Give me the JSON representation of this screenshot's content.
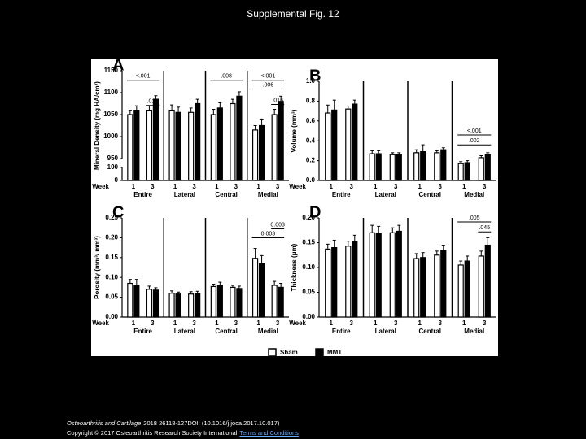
{
  "title": "Supplemental Fig. 12",
  "chart_data": [
    {
      "type": "bar",
      "panel": "A",
      "ylabel": "Mineral Density (mg HA/cm³)",
      "x_label": "Week",
      "groups": [
        "Entire",
        "Lateral",
        "Central",
        "Medial"
      ],
      "weeks": [
        "1",
        "3"
      ],
      "ylim": [
        0,
        1150
      ],
      "y_segments": [
        [
          0,
          100
        ],
        [
          950,
          1150
        ]
      ],
      "yticks": [
        0,
        100,
        950,
        1000,
        1050,
        1100,
        1150
      ],
      "series": [
        {
          "name": "Sham",
          "color": "#ffffff",
          "values": [
            1050,
            1060,
            1060,
            1055,
            1050,
            1075,
            1015,
            1050
          ],
          "errors": [
            10,
            10,
            12,
            10,
            12,
            10,
            10,
            12
          ]
        },
        {
          "name": "MMT",
          "color": "#000000",
          "values": [
            1060,
            1085,
            1055,
            1075,
            1065,
            1092,
            1025,
            1080
          ],
          "errors": [
            10,
            8,
            12,
            10,
            12,
            10,
            15,
            12
          ]
        }
      ],
      "annotations": [
        "<.001",
        ".010",
        ".008",
        "<.001",
        ".006",
        ".016"
      ]
    },
    {
      "type": "bar",
      "panel": "B",
      "ylabel": "Volume (mm³)",
      "x_label": "Week",
      "groups": [
        "Entire",
        "Lateral",
        "Central",
        "Medial"
      ],
      "weeks": [
        "1",
        "3"
      ],
      "ylim": [
        0,
        1
      ],
      "yticks": [
        {
          "value": 0,
          "label": "0.0"
        },
        0.2,
        0.4,
        0.6,
        0.8,
        {
          "value": 1,
          "label": "1.0"
        }
      ],
      "series": [
        {
          "name": "Sham",
          "color": "#ffffff",
          "values": [
            0.68,
            0.72,
            0.27,
            0.26,
            0.28,
            0.28,
            0.17,
            0.23
          ],
          "errors": [
            0.08,
            0.03,
            0.03,
            0.02,
            0.03,
            0.02,
            0.02,
            0.02
          ]
        },
        {
          "name": "MMT",
          "color": "#000000",
          "values": [
            0.71,
            0.77,
            0.27,
            0.26,
            0.29,
            0.31,
            0.18,
            0.26
          ],
          "errors": [
            0.1,
            0.04,
            0.03,
            0.02,
            0.07,
            0.02,
            0.02,
            0.02
          ]
        }
      ],
      "annotations": [
        "<.001",
        ".002"
      ]
    },
    {
      "type": "bar",
      "panel": "C",
      "ylabel": "Porosity (mm³/ mm³)",
      "x_label": "Week",
      "groups": [
        "Entire",
        "Lateral",
        "Central",
        "Medial"
      ],
      "weeks": [
        "1",
        "3"
      ],
      "ylim": [
        0,
        0.25
      ],
      "yticks": [
        {
          "value": 0,
          "label": "0.00"
        },
        {
          "value": 0.05,
          "label": "0.05"
        },
        {
          "value": 0.1,
          "label": "0.10"
        },
        {
          "value": 0.15,
          "label": "0.15"
        },
        {
          "value": 0.2,
          "label": "0.20"
        },
        {
          "value": 0.25,
          "label": "0.25"
        }
      ],
      "series": [
        {
          "name": "Sham",
          "color": "#ffffff",
          "values": [
            0.085,
            0.07,
            0.06,
            0.058,
            0.077,
            0.075,
            0.148,
            0.08
          ],
          "errors": [
            0.01,
            0.008,
            0.006,
            0.006,
            0.006,
            0.005,
            0.025,
            0.01
          ]
        },
        {
          "name": "MMT",
          "color": "#000000",
          "values": [
            0.08,
            0.068,
            0.058,
            0.06,
            0.08,
            0.072,
            0.135,
            0.075
          ],
          "errors": [
            0.015,
            0.006,
            0.005,
            0.005,
            0.008,
            0.006,
            0.02,
            0.01
          ]
        }
      ],
      "annotations": [
        "0.003",
        "0.003"
      ]
    },
    {
      "type": "bar",
      "panel": "D",
      "ylabel": "Thickness (μm)",
      "x_label": "Week",
      "groups": [
        "Entire",
        "Lateral",
        "Central",
        "Medial"
      ],
      "weeks": [
        "1",
        "3"
      ],
      "ylim": [
        0,
        0.2
      ],
      "yticks": [
        {
          "value": 0,
          "label": "0.00"
        },
        {
          "value": 0.05,
          "label": "0.05"
        },
        {
          "value": 0.1,
          "label": "0.10"
        },
        {
          "value": 0.15,
          "label": "0.15"
        },
        {
          "value": 0.2,
          "label": "0.20"
        }
      ],
      "series": [
        {
          "name": "Sham",
          "color": "#ffffff",
          "values": [
            0.137,
            0.143,
            0.17,
            0.17,
            0.118,
            0.125,
            0.105,
            0.123
          ],
          "errors": [
            0.01,
            0.01,
            0.015,
            0.01,
            0.01,
            0.008,
            0.008,
            0.01
          ]
        },
        {
          "name": "MMT",
          "color": "#000000",
          "values": [
            0.14,
            0.153,
            0.168,
            0.173,
            0.12,
            0.135,
            0.113,
            0.145
          ],
          "errors": [
            0.015,
            0.012,
            0.015,
            0.012,
            0.01,
            0.01,
            0.01,
            0.015
          ]
        }
      ],
      "annotations": [
        ".005",
        ".045"
      ]
    }
  ],
  "footer": {
    "journal": "Osteoarthritis and Cartilage",
    "citation": "2018 26118-127DOI: (10.1016/j.joca.2017.10.017)",
    "copyright": "Copyright © 2017 Osteoarthritis Research Society International",
    "link": "Terms and Conditions"
  }
}
